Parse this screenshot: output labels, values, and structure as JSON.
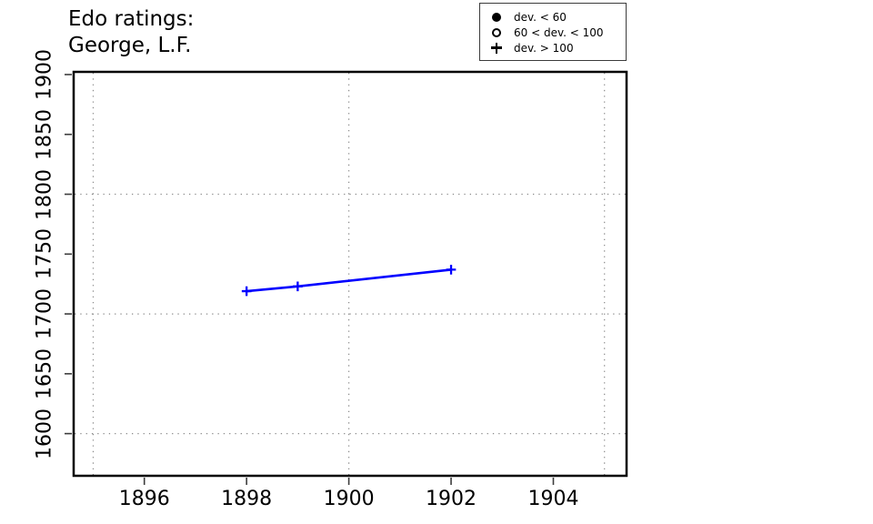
{
  "chart_data": {
    "type": "line",
    "title": "Edo ratings:",
    "subtitle": "George, L.F.",
    "series": [
      {
        "name": "George, L.F.",
        "x": [
          1898,
          1899,
          1902
        ],
        "y": [
          1719,
          1723,
          1737
        ],
        "marker": "plus",
        "color": "#0000FF"
      }
    ],
    "xlim": [
      1894.6,
      1905.45
    ],
    "ylim": [
      1564,
      1903
    ],
    "xticks": [
      1896,
      1898,
      1900,
      1902,
      1904
    ],
    "yticks": [
      1600,
      1650,
      1700,
      1750,
      1800,
      1850,
      1900
    ],
    "grid_x": [
      1895,
      1900,
      1905
    ],
    "grid_y": [
      1600,
      1700,
      1800
    ],
    "grid_style": "dotted",
    "legend_position": "top-right",
    "legend": [
      {
        "symbol": "filled-circle",
        "label": "dev. < 60"
      },
      {
        "symbol": "open-circle",
        "label": "60 < dev. < 100"
      },
      {
        "symbol": "plus",
        "label": "dev. > 100"
      }
    ],
    "colors": {
      "line": "#0000FF",
      "frame": "#000000",
      "grid": "#8c8c8c",
      "background": "#ffffff"
    }
  }
}
